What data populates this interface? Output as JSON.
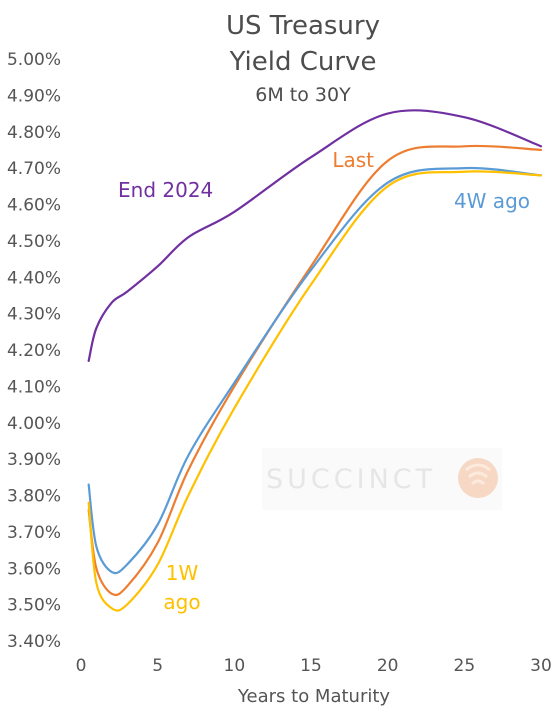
{
  "chart_data": {
    "type": "line",
    "title": [
      "US Treasury",
      "Yield Curve"
    ],
    "subtitle": "6M to 30Y",
    "xlabel": "Years to Maturity",
    "xlim": [
      0,
      30
    ],
    "ylim": [
      3.4,
      5.0
    ],
    "x_ticks": [
      0,
      5,
      10,
      15,
      20,
      25,
      30
    ],
    "y_ticks": [
      "3.40%",
      "3.50%",
      "3.60%",
      "3.70%",
      "3.80%",
      "3.90%",
      "4.00%",
      "4.10%",
      "4.20%",
      "4.30%",
      "4.40%",
      "4.50%",
      "4.60%",
      "4.70%",
      "4.80%",
      "4.90%",
      "5.00%"
    ],
    "watermark": "SUCCINCT",
    "series": [
      {
        "name": "End 2024",
        "color": "#7030a0",
        "x": [
          0.5,
          1,
          2,
          3,
          5,
          7,
          10,
          15,
          20,
          25,
          30
        ],
        "values": [
          4.17,
          4.26,
          4.33,
          4.36,
          4.43,
          4.51,
          4.58,
          4.73,
          4.85,
          4.84,
          4.76
        ]
      },
      {
        "name": "Last",
        "color": "#ed7d31",
        "x": [
          0.5,
          1,
          2,
          3,
          5,
          7,
          10,
          15,
          20,
          25,
          30
        ],
        "values": [
          3.76,
          3.6,
          3.53,
          3.55,
          3.67,
          3.87,
          4.1,
          4.43,
          4.72,
          4.76,
          4.75
        ]
      },
      {
        "name": "4W ago",
        "color": "#5b9bd5",
        "x": [
          0.5,
          1,
          2,
          3,
          5,
          7,
          10,
          15,
          20,
          25,
          30
        ],
        "values": [
          3.83,
          3.66,
          3.59,
          3.61,
          3.72,
          3.91,
          4.11,
          4.42,
          4.66,
          4.7,
          4.68
        ]
      },
      {
        "name": "1W ago",
        "color": "#ffc000",
        "label_lines": [
          "1W",
          "ago"
        ],
        "x": [
          0.5,
          1,
          2,
          3,
          5,
          7,
          10,
          15,
          20,
          25,
          30
        ],
        "values": [
          3.78,
          3.56,
          3.49,
          3.5,
          3.61,
          3.8,
          4.04,
          4.38,
          4.65,
          4.69,
          4.68
        ]
      }
    ]
  }
}
